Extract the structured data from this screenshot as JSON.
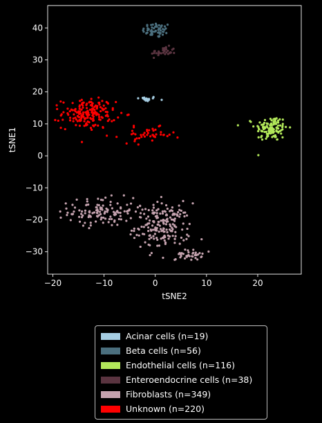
{
  "chart_data": {
    "type": "scatter",
    "title": "",
    "xlabel": "tSNE2",
    "ylabel": "tSNE1",
    "xlim": [
      -21,
      28.5
    ],
    "ylim": [
      -37,
      47
    ],
    "xticks": [
      -20,
      -10,
      0,
      10,
      20
    ],
    "yticks": [
      -30,
      -20,
      -10,
      0,
      10,
      20,
      30,
      40
    ],
    "background": "#000000",
    "legend_position": "below",
    "series": [
      {
        "name": "Acinar cells (n=19)",
        "color": "#a6cee3",
        "n": 19,
        "clusters": [
          {
            "cx": -1.8,
            "cy": 17.8,
            "sx": 1.1,
            "sy": 0.4
          }
        ]
      },
      {
        "name": "Beta cells (n=56)",
        "color": "#4b6f7e",
        "n": 56,
        "clusters": [
          {
            "cx": 0.3,
            "cy": 39.3,
            "sx": 1.4,
            "sy": 1.2
          }
        ]
      },
      {
        "name": "Endothelial cells (n=116)",
        "color": "#b2e85a",
        "n": 116,
        "clusters": [
          {
            "cx": 22.6,
            "cy": 8.6,
            "sx": 1.6,
            "sy": 2.0
          }
        ]
      },
      {
        "name": "Enteroendocrine cells (n=38)",
        "color": "#5a3440",
        "n": 38,
        "clusters": [
          {
            "cx": 1.6,
            "cy": 32.5,
            "sx": 1.2,
            "sy": 0.8
          }
        ]
      },
      {
        "name": "Fibroblasts (n=349)",
        "color": "#c4a2ae",
        "n": 349,
        "clusters": [
          {
            "cx": -10.5,
            "cy": -17.5,
            "sx": 3.2,
            "sy": 2.2,
            "w": 0.35
          },
          {
            "cx": 1.5,
            "cy": -22.0,
            "sx": 2.7,
            "sy": 3.6,
            "w": 0.55
          },
          {
            "cx": 6.5,
            "cy": -31.0,
            "sx": 1.3,
            "sy": 0.8,
            "w": 0.1
          }
        ]
      },
      {
        "name": "Unknown (n=220)",
        "color": "#ff0000",
        "n": 220,
        "clusters": [
          {
            "cx": -13.0,
            "cy": 13.2,
            "sx": 2.6,
            "sy": 2.3,
            "w": 0.8
          },
          {
            "cx": -1.5,
            "cy": 6.5,
            "sx": 2.6,
            "sy": 1.2,
            "w": 0.2
          }
        ]
      }
    ]
  }
}
